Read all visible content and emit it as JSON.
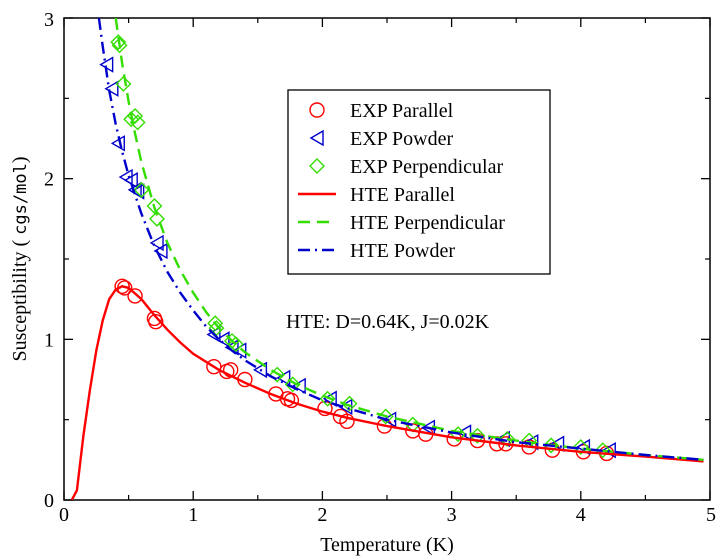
{
  "chart_data": {
    "type": "scatter",
    "title": "",
    "xlabel": "Temperature (K)",
    "ylabel_prefix": "Susceptibility ( ",
    "ylabel_units": "cgs/mol",
    "ylabel_suffix": ")",
    "xlim": [
      0,
      5
    ],
    "ylim": [
      0,
      3
    ],
    "xticks": [
      0,
      1,
      2,
      3,
      4,
      5
    ],
    "yticks": [
      0,
      1,
      2,
      3
    ],
    "grid": false,
    "legend_position": "center",
    "annotation": "HTE:  D=0.64K, J=0.02K",
    "series": [
      {
        "name": "EXP Parallel",
        "kind": "markers",
        "marker": "circle",
        "color": "#ff0000",
        "points": [
          [
            0.45,
            1.33
          ],
          [
            0.47,
            1.32
          ],
          [
            0.55,
            1.27
          ],
          [
            0.7,
            1.13
          ],
          [
            0.71,
            1.11
          ],
          [
            1.16,
            0.83
          ],
          [
            1.26,
            0.8
          ],
          [
            1.29,
            0.81
          ],
          [
            1.4,
            0.75
          ],
          [
            1.64,
            0.66
          ],
          [
            1.73,
            0.63
          ],
          [
            1.76,
            0.62
          ],
          [
            2.02,
            0.57
          ],
          [
            2.14,
            0.52
          ],
          [
            2.19,
            0.49
          ],
          [
            2.48,
            0.46
          ],
          [
            2.7,
            0.43
          ],
          [
            2.8,
            0.41
          ],
          [
            3.02,
            0.38
          ],
          [
            3.2,
            0.37
          ],
          [
            3.35,
            0.35
          ],
          [
            3.42,
            0.35
          ],
          [
            3.6,
            0.33
          ],
          [
            3.78,
            0.31
          ],
          [
            4.02,
            0.3
          ],
          [
            4.2,
            0.29
          ]
        ]
      },
      {
        "name": "EXP Powder",
        "kind": "markers",
        "marker": "triangle-left",
        "color": "#0000cc",
        "points": [
          [
            0.33,
            2.71
          ],
          [
            0.37,
            2.56
          ],
          [
            0.42,
            2.22
          ],
          [
            0.48,
            2.01
          ],
          [
            0.52,
            1.99
          ],
          [
            0.55,
            1.93
          ],
          [
            0.57,
            1.92
          ],
          [
            0.72,
            1.6
          ],
          [
            0.75,
            1.55
          ],
          [
            1.16,
            1.03
          ],
          [
            1.23,
            1.0
          ],
          [
            1.3,
            0.95
          ],
          [
            1.36,
            0.93
          ],
          [
            1.52,
            0.81
          ],
          [
            1.7,
            0.76
          ],
          [
            1.82,
            0.71
          ],
          [
            2.06,
            0.63
          ],
          [
            2.18,
            0.58
          ],
          [
            2.52,
            0.5
          ],
          [
            2.82,
            0.45
          ],
          [
            3.1,
            0.42
          ],
          [
            3.4,
            0.38
          ],
          [
            3.62,
            0.36
          ],
          [
            3.82,
            0.35
          ],
          [
            4.02,
            0.33
          ],
          [
            4.22,
            0.31
          ]
        ]
      },
      {
        "name": "EXP Perpendicular",
        "kind": "markers",
        "marker": "diamond",
        "color": "#33dd00",
        "points": [
          [
            0.42,
            2.85
          ],
          [
            0.43,
            2.83
          ],
          [
            0.46,
            2.59
          ],
          [
            0.52,
            2.37
          ],
          [
            0.55,
            2.39
          ],
          [
            0.57,
            2.35
          ],
          [
            0.6,
            1.93
          ],
          [
            0.7,
            1.83
          ],
          [
            0.72,
            1.75
          ],
          [
            1.17,
            1.1
          ],
          [
            1.18,
            1.07
          ],
          [
            1.3,
            0.99
          ],
          [
            1.33,
            0.97
          ],
          [
            1.65,
            0.78
          ],
          [
            1.77,
            0.72
          ],
          [
            2.04,
            0.63
          ],
          [
            2.21,
            0.6
          ],
          [
            2.49,
            0.52
          ],
          [
            2.7,
            0.47
          ],
          [
            3.05,
            0.41
          ],
          [
            3.2,
            0.4
          ],
          [
            3.43,
            0.38
          ],
          [
            3.6,
            0.37
          ],
          [
            3.77,
            0.34
          ],
          [
            4.0,
            0.33
          ],
          [
            4.17,
            0.31
          ]
        ]
      },
      {
        "name": "HTE Parallel",
        "kind": "line",
        "dash": "",
        "color": "#ff0000",
        "points": [
          [
            0.06,
            0.0
          ],
          [
            0.1,
            0.06
          ],
          [
            0.15,
            0.4
          ],
          [
            0.2,
            0.68
          ],
          [
            0.25,
            0.93
          ],
          [
            0.3,
            1.12
          ],
          [
            0.35,
            1.25
          ],
          [
            0.4,
            1.31
          ],
          [
            0.45,
            1.33
          ],
          [
            0.5,
            1.32
          ],
          [
            0.6,
            1.25
          ],
          [
            0.7,
            1.15
          ],
          [
            0.8,
            1.06
          ],
          [
            0.9,
            0.98
          ],
          [
            1.0,
            0.91
          ],
          [
            1.2,
            0.81
          ],
          [
            1.4,
            0.73
          ],
          [
            1.6,
            0.66
          ],
          [
            1.8,
            0.6
          ],
          [
            2.0,
            0.55
          ],
          [
            2.2,
            0.51
          ],
          [
            2.5,
            0.46
          ],
          [
            3.0,
            0.39
          ],
          [
            3.5,
            0.34
          ],
          [
            4.0,
            0.3
          ],
          [
            4.5,
            0.27
          ],
          [
            4.95,
            0.24
          ]
        ]
      },
      {
        "name": "HTE Perpendicular",
        "kind": "line",
        "dash": "12 7",
        "color": "#33dd00",
        "points": [
          [
            0.4,
            3.0
          ],
          [
            0.45,
            2.72
          ],
          [
            0.5,
            2.48
          ],
          [
            0.55,
            2.28
          ],
          [
            0.6,
            2.1
          ],
          [
            0.7,
            1.82
          ],
          [
            0.8,
            1.6
          ],
          [
            0.9,
            1.43
          ],
          [
            1.0,
            1.29
          ],
          [
            1.1,
            1.17
          ],
          [
            1.2,
            1.07
          ],
          [
            1.3,
            0.99
          ],
          [
            1.4,
            0.92
          ],
          [
            1.6,
            0.81
          ],
          [
            1.8,
            0.72
          ],
          [
            2.0,
            0.65
          ],
          [
            2.2,
            0.59
          ],
          [
            2.5,
            0.52
          ],
          [
            3.0,
            0.43
          ],
          [
            3.5,
            0.37
          ],
          [
            4.0,
            0.32
          ],
          [
            4.5,
            0.28
          ],
          [
            4.95,
            0.25
          ]
        ]
      },
      {
        "name": "HTE Powder",
        "kind": "line",
        "dash": "12 5 2 5",
        "color": "#0000cc",
        "points": [
          [
            0.27,
            3.0
          ],
          [
            0.3,
            2.82
          ],
          [
            0.35,
            2.55
          ],
          [
            0.4,
            2.34
          ],
          [
            0.45,
            2.17
          ],
          [
            0.5,
            2.02
          ],
          [
            0.6,
            1.78
          ],
          [
            0.7,
            1.58
          ],
          [
            0.8,
            1.42
          ],
          [
            0.9,
            1.29
          ],
          [
            1.0,
            1.18
          ],
          [
            1.1,
            1.08
          ],
          [
            1.2,
            1.0
          ],
          [
            1.3,
            0.93
          ],
          [
            1.4,
            0.87
          ],
          [
            1.6,
            0.77
          ],
          [
            1.8,
            0.69
          ],
          [
            2.0,
            0.62
          ],
          [
            2.2,
            0.57
          ],
          [
            2.5,
            0.5
          ],
          [
            3.0,
            0.42
          ],
          [
            3.5,
            0.36
          ],
          [
            4.0,
            0.32
          ],
          [
            4.5,
            0.28
          ],
          [
            4.95,
            0.25
          ]
        ]
      }
    ]
  }
}
